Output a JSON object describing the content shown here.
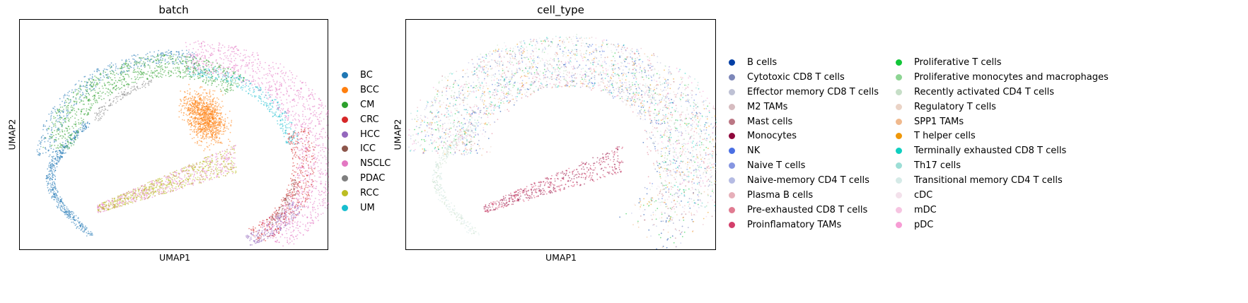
{
  "chart_data": [
    {
      "type": "scatter",
      "title": "batch",
      "xlabel": "UMAP1",
      "ylabel": "UMAP2",
      "grid": false,
      "legend_placement": "right",
      "legend_columns": 1,
      "categories": [
        {
          "name": "BC",
          "color": "#1f77b4"
        },
        {
          "name": "BCC",
          "color": "#ff7f0e"
        },
        {
          "name": "CM",
          "color": "#2ca02c"
        },
        {
          "name": "CRC",
          "color": "#d62728"
        },
        {
          "name": "HCC",
          "color": "#9467bd"
        },
        {
          "name": "ICC",
          "color": "#8c564b"
        },
        {
          "name": "NSCLC",
          "color": "#e377c2"
        },
        {
          "name": "PDAC",
          "color": "#7f7f7f"
        },
        {
          "name": "RCC",
          "color": "#bcbd22"
        },
        {
          "name": "UM",
          "color": "#17becf"
        }
      ]
    },
    {
      "type": "scatter",
      "title": "cell_type",
      "xlabel": "UMAP1",
      "ylabel": "UMAP2",
      "grid": false,
      "legend_placement": "right",
      "legend_columns": 2,
      "categories": [
        {
          "name": "B cells",
          "color": "#023fa5"
        },
        {
          "name": "Cytotoxic CD8 T cells",
          "color": "#7d87b9"
        },
        {
          "name": "Effector memory CD8 T cells",
          "color": "#bec1d4"
        },
        {
          "name": "M2 TAMs",
          "color": "#d6bcc0"
        },
        {
          "name": "Mast cells",
          "color": "#bb7784"
        },
        {
          "name": "Monocytes",
          "color": "#8e063b"
        },
        {
          "name": "NK",
          "color": "#4a6fe3"
        },
        {
          "name": "Naive T cells",
          "color": "#8595e1"
        },
        {
          "name": "Naive-memory CD4 T cells",
          "color": "#b5bbe3"
        },
        {
          "name": "Plasma B cells",
          "color": "#e6afb9"
        },
        {
          "name": "Pre-exhausted CD8 T cells",
          "color": "#e07b91"
        },
        {
          "name": "Proinflamatory TAMs",
          "color": "#d33f6a"
        },
        {
          "name": "Proliferative T cells",
          "color": "#11c638"
        },
        {
          "name": "Proliferative monocytes and macrophages",
          "color": "#8dd593"
        },
        {
          "name": "Recently activated CD4 T cells",
          "color": "#c6dec7"
        },
        {
          "name": "Regulatory T cells",
          "color": "#ead3c6"
        },
        {
          "name": "SPP1 TAMs",
          "color": "#f0b98d"
        },
        {
          "name": "T helper cells",
          "color": "#ef9708"
        },
        {
          "name": "Terminally exhausted CD8 T cells",
          "color": "#0fcfc0"
        },
        {
          "name": "Th17 cells",
          "color": "#9cded6"
        },
        {
          "name": "Transitional memory CD4 T cells",
          "color": "#d5eae7"
        },
        {
          "name": "cDC",
          "color": "#f3e1eb"
        },
        {
          "name": "mDC",
          "color": "#f6c4e1"
        },
        {
          "name": "pDC",
          "color": "#f79cd4"
        }
      ]
    }
  ]
}
